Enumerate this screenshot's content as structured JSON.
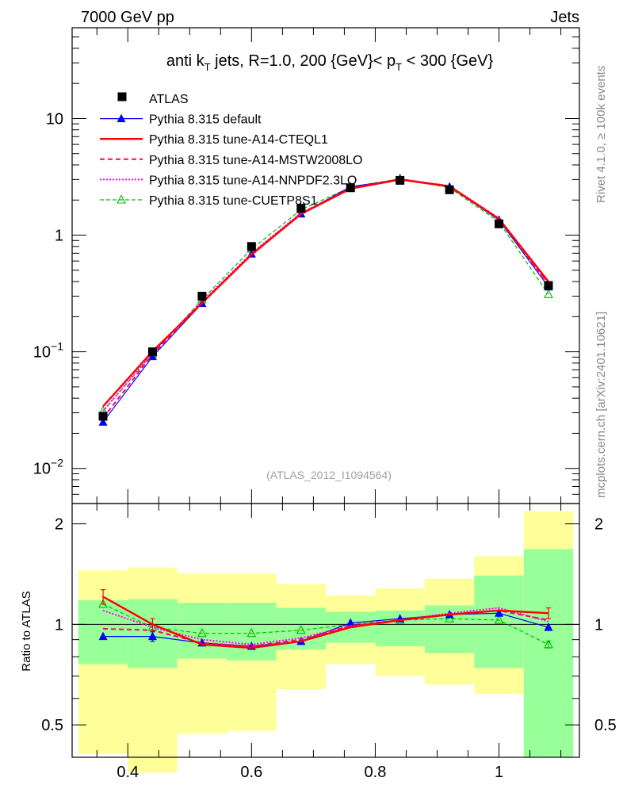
{
  "header": {
    "left": "7000 GeV pp",
    "right": "Jets",
    "side_top": "Rivet 4.1.0, ≥ 100k events",
    "side_bottom": "mcplots.cern.ch [arXiv:2401.10621]",
    "watermark": "(ATLAS_2012_I1094564)"
  },
  "colors": {
    "atlas": "#000000",
    "default": "#0000ff",
    "cteql1": "#ff0000",
    "mstw": "#ff0066",
    "nnpdf": "#ff00ff",
    "cuetp8s1": "#00bb00",
    "band_yellow": "#ffff99",
    "band_green": "#99ff99"
  },
  "chart_data": [
    {
      "type": "line",
      "title_parts": {
        "a": "anti k",
        "a_sub": "T",
        "b": " jets, R=1.0,  200 {GeV}< p",
        "b_sub": "T",
        "c": " < 300 {GeV}"
      },
      "yscale": "log",
      "xlim": [
        0.31,
        1.13
      ],
      "ylim": [
        0.005,
        60
      ],
      "ytick_labels": [
        {
          "value": 0.01,
          "base": "10",
          "exp": "−2"
        },
        {
          "value": 0.1,
          "base": "10",
          "exp": "−1"
        },
        {
          "value": 1,
          "base": "1",
          "exp": ""
        },
        {
          "value": 10,
          "base": "10",
          "exp": ""
        }
      ],
      "x": [
        0.36,
        0.44,
        0.52,
        0.6,
        0.68,
        0.76,
        0.84,
        0.92,
        1.0,
        1.08
      ],
      "legend": [
        {
          "key": "atlas",
          "label": "ATLAS"
        },
        {
          "key": "default",
          "label": "Pythia 8.315 default"
        },
        {
          "key": "cteql1",
          "label": "Pythia 8.315 tune-A14-CTEQL1"
        },
        {
          "key": "mstw",
          "label": "Pythia 8.315 tune-A14-MSTW2008LO"
        },
        {
          "key": "nnpdf",
          "label": "Pythia 8.315 tune-A14-NNPDF2.3LO"
        },
        {
          "key": "cuetp8s1",
          "label": "Pythia 8.315 tune-CUETP8S1"
        }
      ],
      "series": [
        {
          "key": "atlas",
          "name": "ATLAS",
          "values": [
            0.028,
            0.1,
            0.3,
            0.8,
            1.7,
            2.55,
            2.95,
            2.45,
            1.25,
            0.37
          ]
        },
        {
          "key": "default",
          "name": "Pythia 8.315 default",
          "values": [
            0.025,
            0.091,
            0.26,
            0.69,
            1.52,
            2.6,
            3.0,
            2.6,
            1.35,
            0.36
          ]
        },
        {
          "key": "cteql1",
          "name": "Pythia 8.315 tune-A14-CTEQL1",
          "values": [
            0.034,
            0.101,
            0.262,
            0.68,
            1.52,
            2.5,
            3.0,
            2.62,
            1.38,
            0.4
          ]
        },
        {
          "key": "mstw",
          "name": "Pythia 8.315 tune-A14-MSTW2008LO",
          "values": [
            0.027,
            0.095,
            0.262,
            0.685,
            1.53,
            2.52,
            3.02,
            2.62,
            1.38,
            0.38
          ]
        },
        {
          "key": "nnpdf",
          "name": "Pythia 8.315 tune-A14-NNPDF2.3LO",
          "values": [
            0.031,
            0.098,
            0.27,
            0.7,
            1.55,
            2.52,
            3.02,
            2.65,
            1.4,
            0.38
          ]
        },
        {
          "key": "cuetp8s1",
          "name": "Pythia 8.315 tune-CUETP8S1",
          "values": [
            0.031,
            0.096,
            0.28,
            0.76,
            1.65,
            2.57,
            3.05,
            2.55,
            1.3,
            0.31
          ]
        }
      ]
    },
    {
      "type": "line",
      "ylabel": "Ratio to ATLAS",
      "yscale": "log",
      "xlim": [
        0.31,
        1.13
      ],
      "ylim": [
        0.4,
        2.3
      ],
      "xtick_labels": [
        {
          "value": 0.4,
          "label": "0.4"
        },
        {
          "value": 0.6,
          "label": "0.6"
        },
        {
          "value": 0.8,
          "label": "0.8"
        },
        {
          "value": 1.0,
          "label": "1"
        }
      ],
      "ytick_labels": [
        {
          "value": 0.5,
          "label": "0.5"
        },
        {
          "value": 1,
          "label": "1"
        },
        {
          "value": 2,
          "label": "2"
        }
      ],
      "bin_edges": [
        0.32,
        0.4,
        0.48,
        0.56,
        0.64,
        0.72,
        0.8,
        0.88,
        0.96,
        1.04,
        1.12
      ],
      "band_yellow": [
        [
          0.41,
          1.45
        ],
        [
          0.36,
          1.48
        ],
        [
          0.47,
          1.42
        ],
        [
          0.48,
          1.42
        ],
        [
          0.64,
          1.32
        ],
        [
          0.76,
          1.22
        ],
        [
          0.7,
          1.28
        ],
        [
          0.66,
          1.37
        ],
        [
          0.62,
          1.6
        ],
        [
          0.4,
          2.18
        ]
      ],
      "band_green": [
        [
          0.76,
          1.18
        ],
        [
          0.74,
          1.19
        ],
        [
          0.79,
          1.16
        ],
        [
          0.78,
          1.16
        ],
        [
          0.84,
          1.12
        ],
        [
          0.88,
          1.09
        ],
        [
          0.86,
          1.1
        ],
        [
          0.82,
          1.14
        ],
        [
          0.74,
          1.4
        ],
        [
          0.4,
          1.68
        ]
      ],
      "x": [
        0.36,
        0.44,
        0.52,
        0.6,
        0.68,
        0.76,
        0.84,
        0.92,
        1.0,
        1.08
      ],
      "series": [
        {
          "key": "default",
          "name": "Pythia 8.315 default",
          "values": [
            0.92,
            0.92,
            0.88,
            0.86,
            0.89,
            1.01,
            1.04,
            1.07,
            1.08,
            0.98
          ]
        },
        {
          "key": "cteql1",
          "name": "Pythia 8.315 tune-A14-CTEQL1",
          "values": [
            1.21,
            1.0,
            0.87,
            0.85,
            0.89,
            0.98,
            1.03,
            1.07,
            1.1,
            1.08
          ]
        },
        {
          "key": "mstw",
          "name": "Pythia 8.315 tune-A14-MSTW2008LO",
          "values": [
            0.97,
            0.96,
            0.88,
            0.86,
            0.9,
            0.99,
            1.03,
            1.07,
            1.1,
            1.03
          ]
        },
        {
          "key": "nnpdf",
          "name": "Pythia 8.315 tune-A14-NNPDF2.3LO",
          "values": [
            1.1,
            0.98,
            0.9,
            0.87,
            0.91,
            0.99,
            1.03,
            1.08,
            1.12,
            1.02
          ]
        },
        {
          "key": "cuetp8s1",
          "name": "Pythia 8.315 tune-CUETP8S1",
          "values": [
            1.15,
            0.98,
            0.94,
            0.94,
            0.96,
            1.0,
            1.03,
            1.04,
            1.03,
            0.87
          ]
        }
      ],
      "errors": [
        {
          "key": "default",
          "index": 1,
          "err": 0.03
        },
        {
          "key": "cteql1",
          "index": 0,
          "err": 0.06
        },
        {
          "key": "cteql1",
          "index": 1,
          "err": 0.04
        },
        {
          "key": "cteql1",
          "index": 9,
          "err": 0.04
        },
        {
          "key": "cuetp8s1",
          "index": 9,
          "err": 0.02
        }
      ]
    }
  ]
}
